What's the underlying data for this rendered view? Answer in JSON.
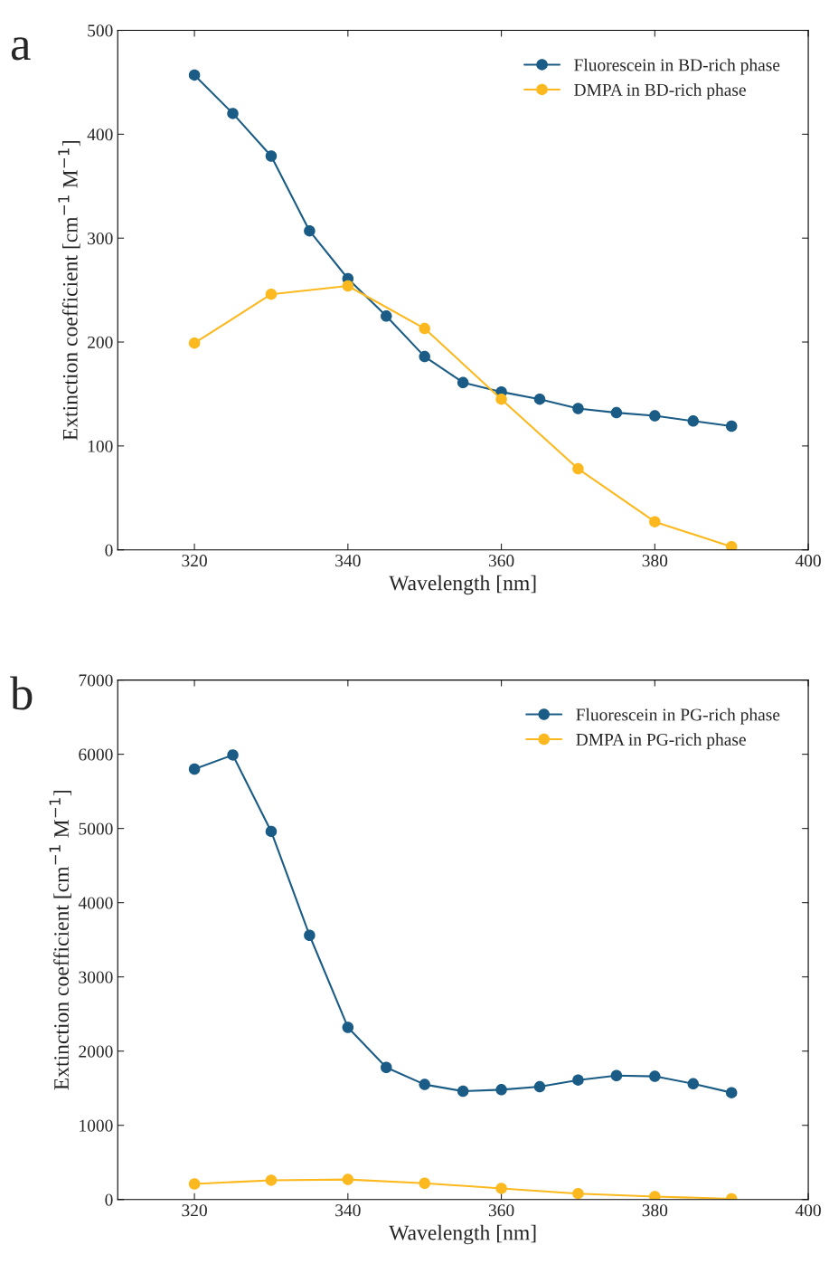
{
  "chart_data": [
    {
      "type": "line",
      "xlabel": "Wavelength [nm]",
      "ylabel": "Extinction coefficient [cm$^{−1}$ M$^{−1}$]",
      "annotations": [
        "a"
      ],
      "xlim": [
        310,
        400
      ],
      "xticks": [
        320,
        340,
        360,
        380,
        400
      ],
      "ylim": [
        0,
        500
      ],
      "yticks": [
        0,
        100,
        200,
        300,
        400,
        500
      ],
      "grid": false,
      "legend": "top right",
      "marker": "circle",
      "line_style": "solid",
      "series": [
        {
          "name": "Fluorescein in BD-rich phase",
          "color": "#1a5c85",
          "x": [
            320,
            325,
            330,
            335,
            340,
            345,
            350,
            355,
            360,
            365,
            370,
            375,
            380,
            385,
            390
          ],
          "values": [
            457,
            420,
            379,
            307,
            261,
            225,
            186,
            161,
            152,
            145,
            136,
            132,
            129,
            124,
            119
          ]
        },
        {
          "name": "DMPA in BD-rich phase",
          "color": "#fbb91f",
          "x": [
            320,
            330,
            340,
            350,
            360,
            370,
            380,
            390
          ],
          "values": [
            199,
            246,
            254,
            213,
            145,
            78,
            27,
            3
          ]
        }
      ]
    },
    {
      "type": "line",
      "xlabel": "Wavelength [nm]",
      "ylabel": "Extinction coefficient [cm$^{−1}$ M$^{−1}$]",
      "annotations": [
        "b"
      ],
      "xlim": [
        310,
        400
      ],
      "xticks": [
        320,
        340,
        360,
        380,
        400
      ],
      "ylim": [
        0,
        7000
      ],
      "yticks": [
        0,
        1000,
        2000,
        3000,
        4000,
        5000,
        6000,
        7000
      ],
      "grid": false,
      "legend": "top right",
      "marker": "circle",
      "line_style": "solid",
      "series": [
        {
          "name": "Fluorescein in PG-rich phase",
          "color": "#1a5c85",
          "x": [
            320,
            325,
            330,
            335,
            340,
            345,
            350,
            355,
            360,
            365,
            370,
            375,
            380,
            385,
            390
          ],
          "values": [
            5800,
            5990,
            4960,
            3560,
            2320,
            1780,
            1550,
            1460,
            1480,
            1520,
            1610,
            1670,
            1660,
            1560,
            1440
          ]
        },
        {
          "name": "DMPA in PG-rich phase",
          "color": "#fbb91f",
          "x": [
            320,
            330,
            340,
            350,
            360,
            370,
            380,
            390
          ],
          "values": [
            210,
            260,
            270,
            220,
            150,
            80,
            40,
            10
          ]
        }
      ]
    }
  ]
}
